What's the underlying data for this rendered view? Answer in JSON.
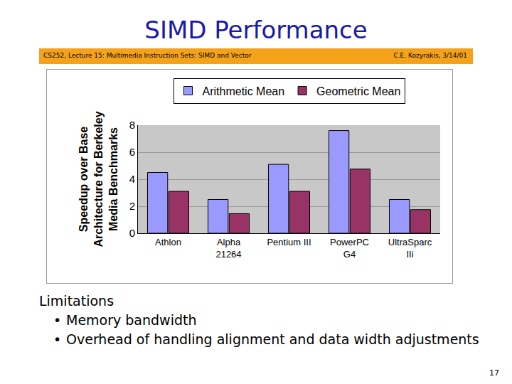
{
  "chart_data": {
    "type": "bar",
    "categories": [
      "Athlon",
      "Alpha\n21264",
      "Pentium III",
      "PowerPC\nG4",
      "UltraSparc\nIIi"
    ],
    "series": [
      {
        "name": "Arithmetic Mean",
        "color": "#9999ff",
        "values": [
          4.5,
          2.5,
          5.1,
          7.6,
          2.5
        ]
      },
      {
        "name": "Geometric Mean",
        "color": "#993366",
        "values": [
          3.1,
          1.45,
          3.1,
          4.75,
          1.75
        ]
      }
    ],
    "y_label": "Speedup over Base\nArchitecture for Berkeley\nMedia Benchmarks",
    "ylim": [
      0,
      8
    ],
    "yticks": [
      0,
      2,
      4,
      6,
      8
    ],
    "grid": true,
    "legend": "top"
  },
  "slide": {
    "title": "SIMD Performance",
    "header_left": "CS252, Lecture 15: Multimedia Instruction Sets: SIMD and Vector",
    "header_right": "C.E. Kozyrakis, 3/14/01",
    "heading": "Limitations",
    "bullets": [
      "Memory bandwidth",
      "Overhead of handling alignment and data width adjustments"
    ],
    "page": "17"
  }
}
